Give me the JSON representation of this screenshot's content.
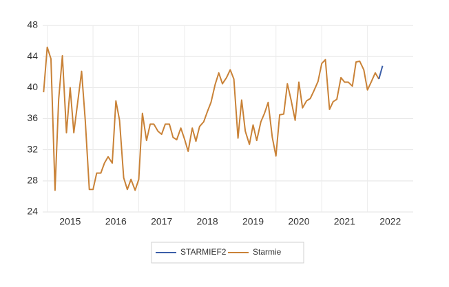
{
  "chart_data": {
    "type": "line",
    "x": [
      2014.92,
      2015.0,
      2015.08,
      2015.17,
      2015.25,
      2015.33,
      2015.42,
      2015.5,
      2015.58,
      2015.67,
      2015.75,
      2015.83,
      2015.92,
      2016.0,
      2016.08,
      2016.17,
      2016.25,
      2016.33,
      2016.42,
      2016.5,
      2016.58,
      2016.67,
      2016.75,
      2016.83,
      2016.92,
      2017.0,
      2017.08,
      2017.17,
      2017.25,
      2017.33,
      2017.42,
      2017.5,
      2017.58,
      2017.67,
      2017.75,
      2017.83,
      2017.92,
      2018.0,
      2018.08,
      2018.17,
      2018.25,
      2018.33,
      2018.42,
      2018.5,
      2018.58,
      2018.67,
      2018.75,
      2018.83,
      2018.92,
      2019.0,
      2019.08,
      2019.17,
      2019.25,
      2019.33,
      2019.42,
      2019.5,
      2019.58,
      2019.67,
      2019.75,
      2019.83,
      2019.92,
      2020.0,
      2020.08,
      2020.17,
      2020.25,
      2020.33,
      2020.42,
      2020.5,
      2020.58,
      2020.67,
      2020.75,
      2020.83,
      2020.92,
      2021.0,
      2021.08,
      2021.17,
      2021.25,
      2021.33,
      2021.42,
      2021.5,
      2021.58,
      2021.67,
      2021.75,
      2021.83,
      2021.92,
      2022.0,
      2022.08,
      2022.17,
      2022.25,
      2022.33
    ],
    "series": [
      {
        "name": "STARMIEF2",
        "color": "#3b5ea8",
        "values": [
          null,
          null,
          null,
          null,
          null,
          null,
          null,
          null,
          null,
          null,
          null,
          null,
          null,
          null,
          null,
          null,
          null,
          null,
          null,
          null,
          null,
          null,
          null,
          null,
          null,
          null,
          null,
          null,
          null,
          null,
          null,
          null,
          null,
          null,
          null,
          null,
          null,
          null,
          null,
          null,
          null,
          null,
          null,
          null,
          null,
          null,
          null,
          null,
          null,
          null,
          null,
          null,
          null,
          null,
          null,
          null,
          null,
          null,
          null,
          null,
          null,
          null,
          null,
          null,
          null,
          null,
          null,
          null,
          null,
          null,
          null,
          null,
          null,
          null,
          null,
          null,
          null,
          null,
          null,
          null,
          null,
          null,
          null,
          null,
          null,
          null,
          null,
          null,
          41.1,
          42.8
        ]
      },
      {
        "name": "Starmie",
        "color": "#c98237",
        "values": [
          39.4,
          45.2,
          43.7,
          26.8,
          38.5,
          44.1,
          34.2,
          40.0,
          34.2,
          38.3,
          42.1,
          35.8,
          26.9,
          26.9,
          29.0,
          29.0,
          30.3,
          31.1,
          30.3,
          38.3,
          35.8,
          28.4,
          26.9,
          28.2,
          26.8,
          28.2,
          36.7,
          33.2,
          35.3,
          35.3,
          34.4,
          34.0,
          35.3,
          35.3,
          33.6,
          33.3,
          34.8,
          33.4,
          31.8,
          34.8,
          33.1,
          35.0,
          35.6,
          36.9,
          38.1,
          40.4,
          41.9,
          40.5,
          41.3,
          42.3,
          41.1,
          33.5,
          38.4,
          34.4,
          32.7,
          35.2,
          33.2,
          35.6,
          36.7,
          38.1,
          33.6,
          31.2,
          36.5,
          36.6,
          40.5,
          38.4,
          35.8,
          40.7,
          37.4,
          38.3,
          38.6,
          39.6,
          40.8,
          43.1,
          43.6,
          37.2,
          38.2,
          38.5,
          41.3,
          40.7,
          40.7,
          40.2,
          43.3,
          43.4,
          42.3,
          39.7,
          40.7,
          41.9,
          41.1,
          null
        ]
      }
    ],
    "xlim": [
      2014.9,
      2023.0
    ],
    "xticks": [
      {
        "value": 2015,
        "label": "2015"
      },
      {
        "value": 2016,
        "label": "2016"
      },
      {
        "value": 2017,
        "label": "2017"
      },
      {
        "value": 2018,
        "label": "2018"
      },
      {
        "value": 2019,
        "label": "2019"
      },
      {
        "value": 2020,
        "label": "2020"
      },
      {
        "value": 2021,
        "label": "2021"
      },
      {
        "value": 2022,
        "label": "2022"
      }
    ],
    "ylim": [
      24,
      48
    ],
    "yticks": [
      24,
      28,
      32,
      36,
      40,
      44,
      48
    ],
    "grid": true,
    "legend": "bottom"
  }
}
